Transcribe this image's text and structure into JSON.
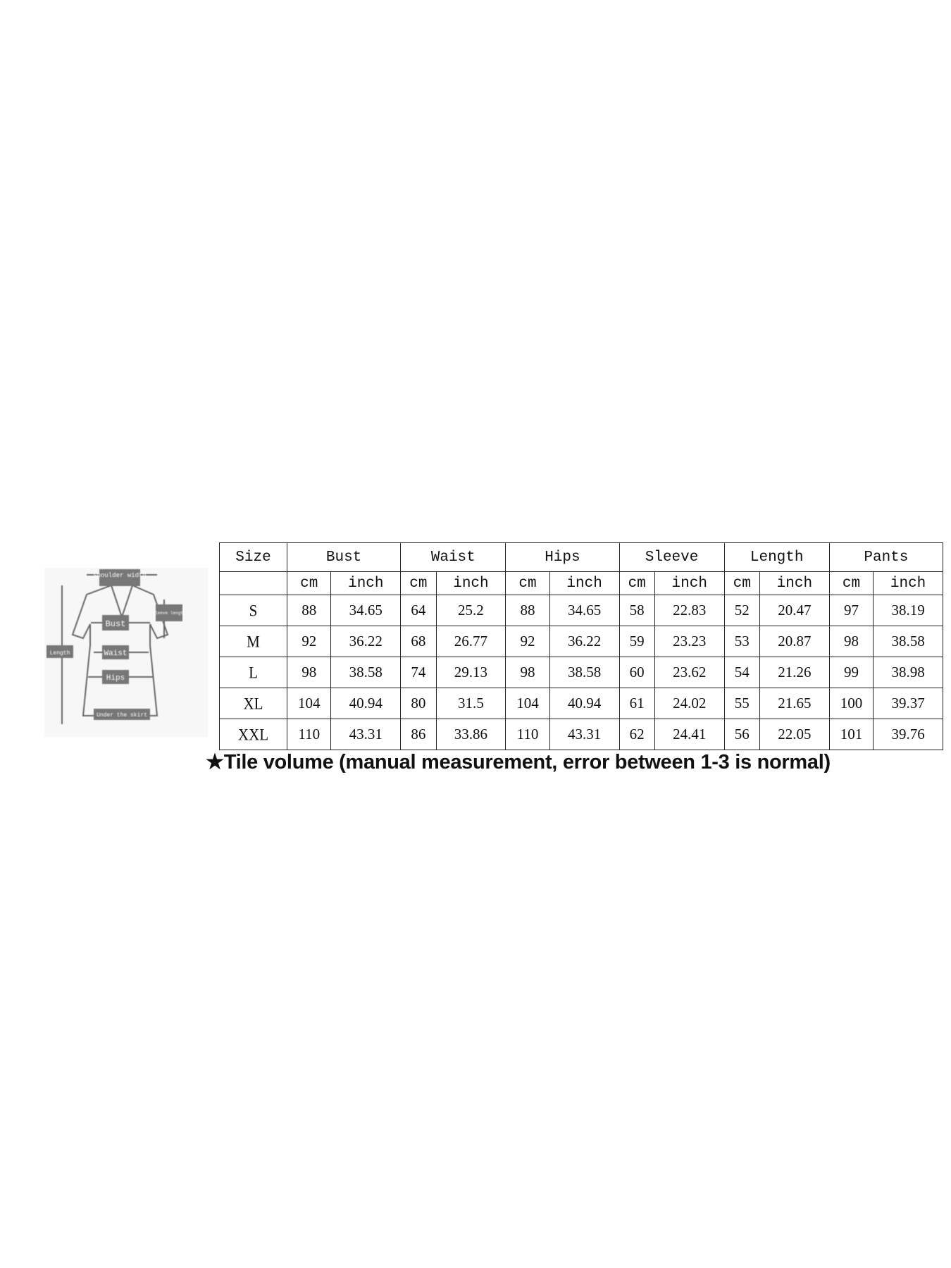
{
  "diagram": {
    "labels": {
      "shoulder": "shoulder width",
      "sleeve": "sleeve length",
      "bust": "Bust",
      "length": "Length",
      "waist": "Waist",
      "hips": "Hips",
      "hem": "Under the skirt"
    }
  },
  "table": {
    "size_header": "Size",
    "groups": [
      "Bust",
      "Waist",
      "Hips",
      "Sleeve",
      "Length",
      "Pants"
    ],
    "unit_cm": "cm",
    "unit_inch": "inch",
    "rows": [
      {
        "size": "S",
        "values": [
          "88",
          "34.65",
          "64",
          "25.2",
          "88",
          "34.65",
          "58",
          "22.83",
          "52",
          "20.47",
          "97",
          "38.19"
        ]
      },
      {
        "size": "M",
        "values": [
          "92",
          "36.22",
          "68",
          "26.77",
          "92",
          "36.22",
          "59",
          "23.23",
          "53",
          "20.87",
          "98",
          "38.58"
        ]
      },
      {
        "size": "L",
        "values": [
          "98",
          "38.58",
          "74",
          "29.13",
          "98",
          "38.58",
          "60",
          "23.62",
          "54",
          "21.26",
          "99",
          "38.98"
        ]
      },
      {
        "size": "XL",
        "values": [
          "104",
          "40.94",
          "80",
          "31.5",
          "104",
          "40.94",
          "61",
          "24.02",
          "55",
          "21.65",
          "100",
          "39.37"
        ]
      },
      {
        "size": "XXL",
        "values": [
          "110",
          "43.31",
          "86",
          "33.86",
          "110",
          "43.31",
          "62",
          "24.41",
          "56",
          "22.05",
          "101",
          "39.76"
        ]
      }
    ]
  },
  "caption": "★Tile volume (manual measurement, error between 1-3 is normal)"
}
